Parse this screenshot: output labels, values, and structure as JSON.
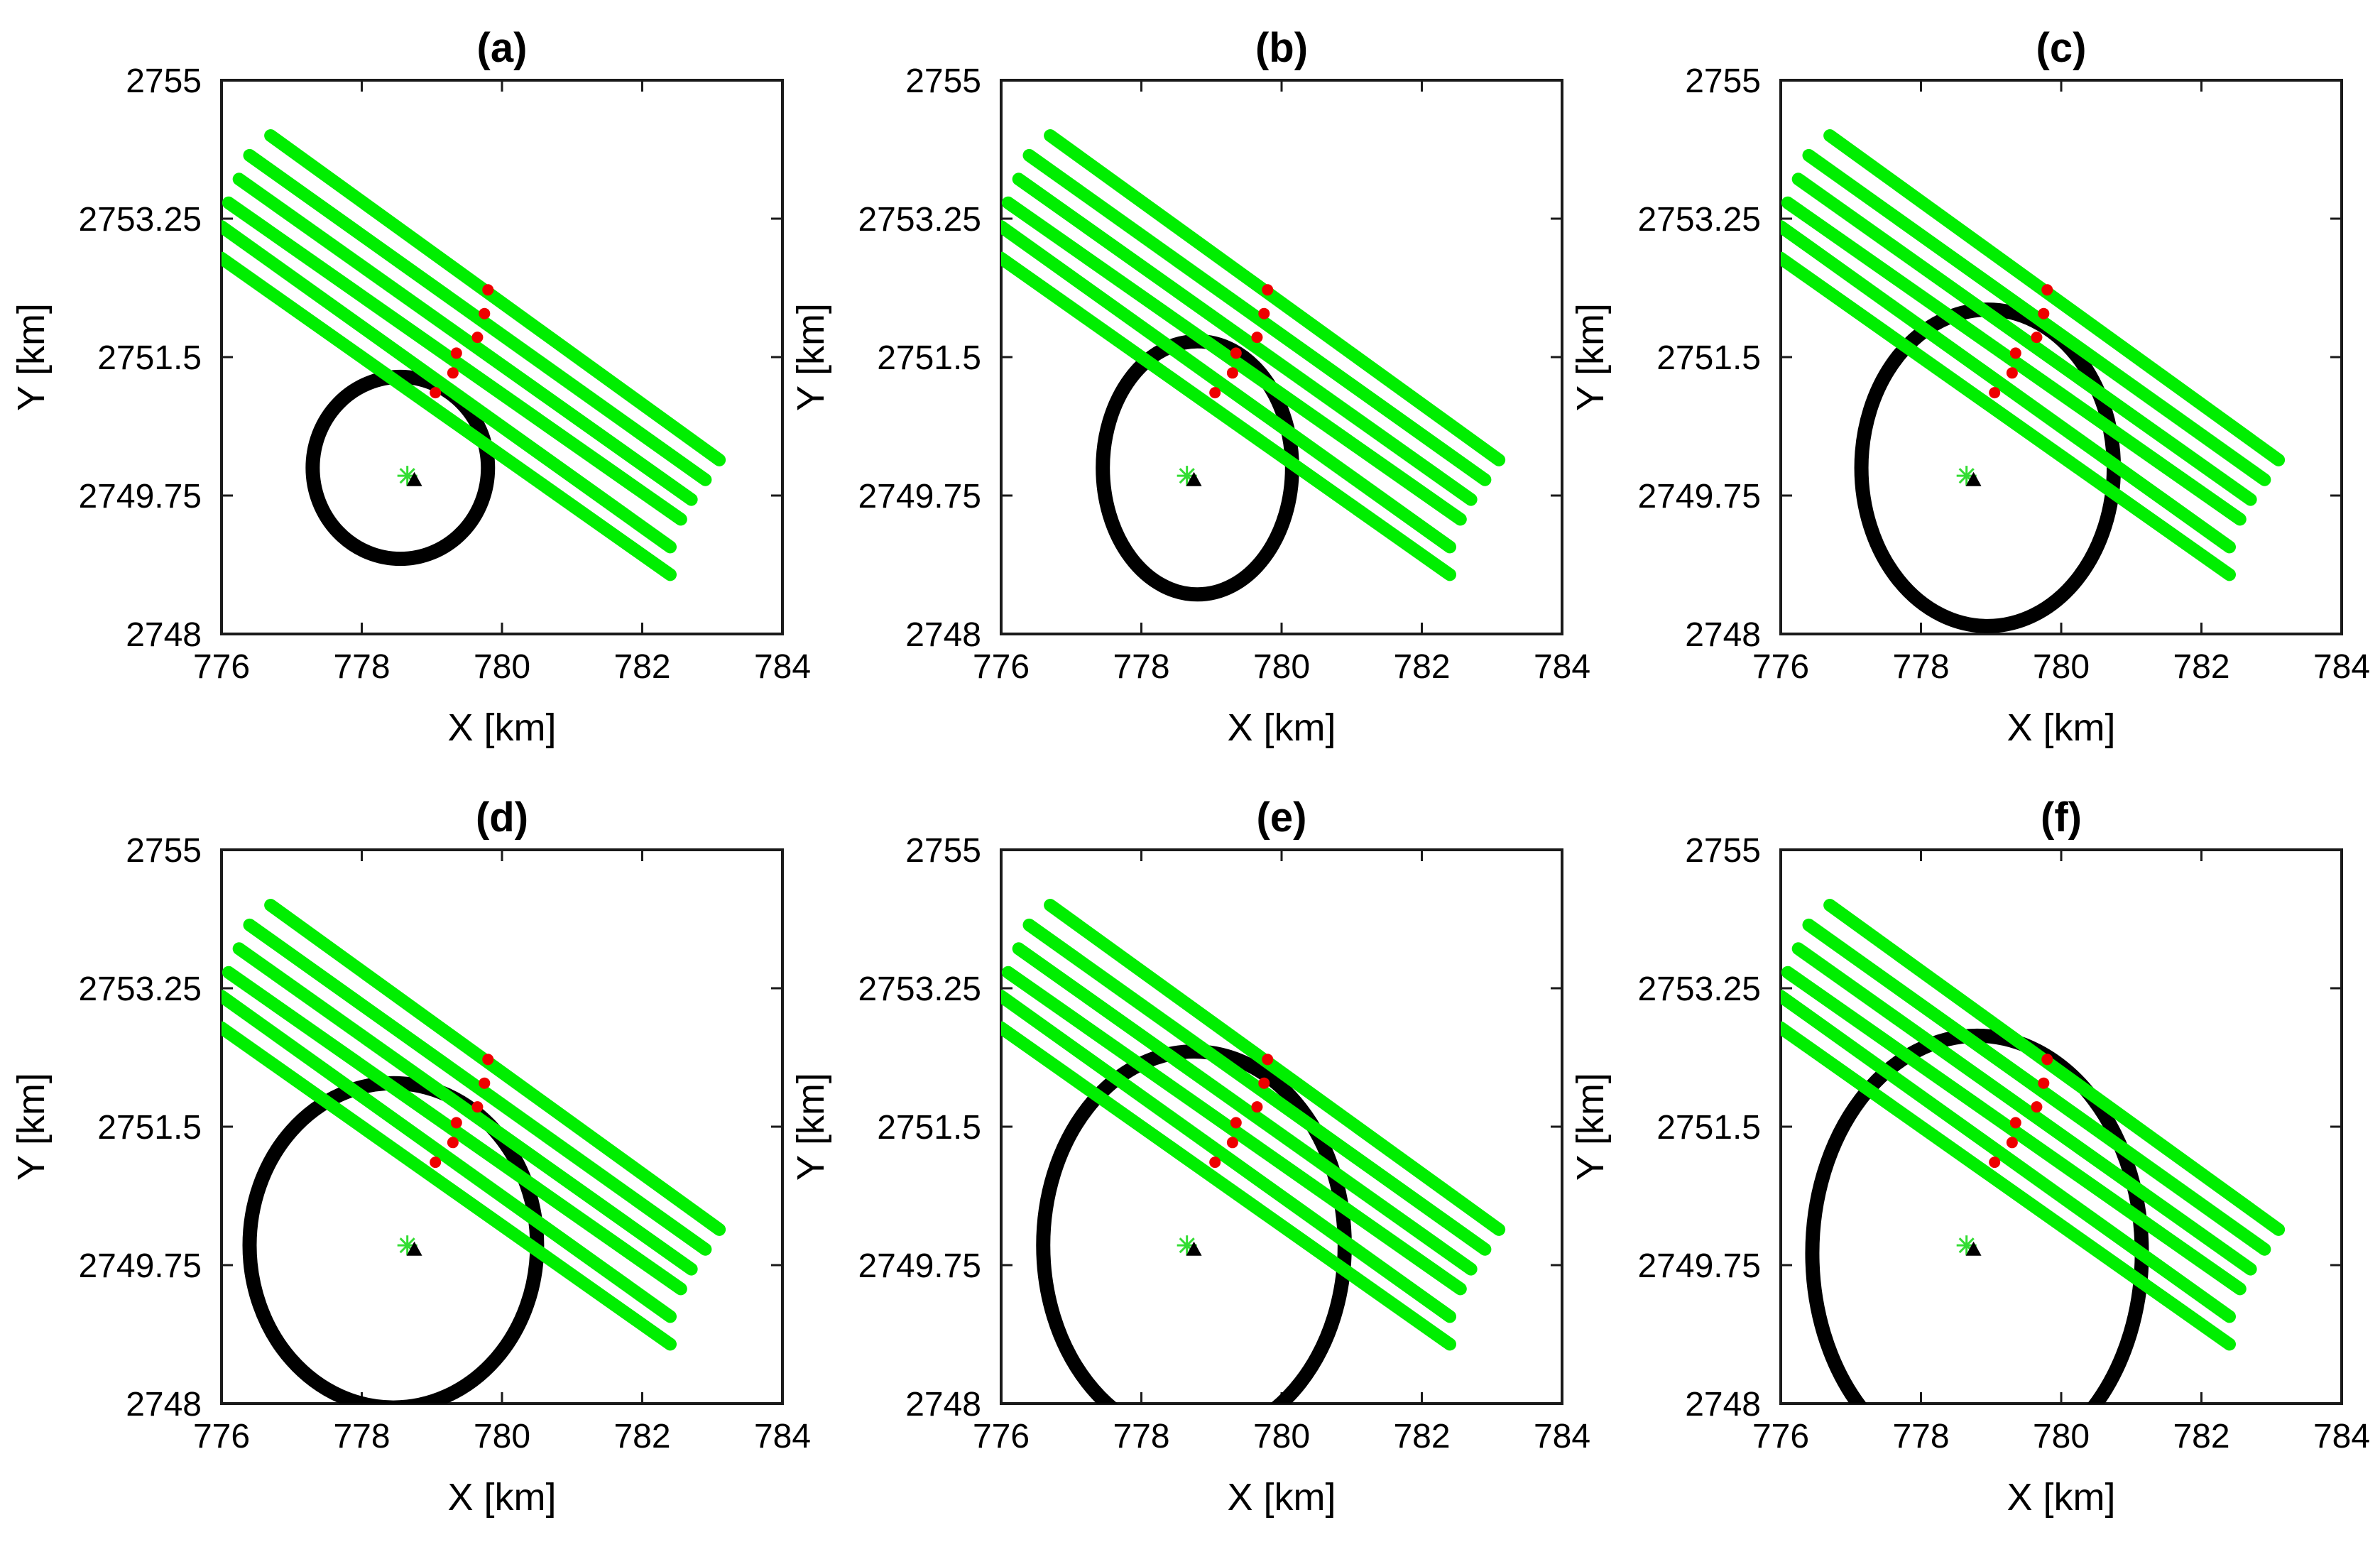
{
  "chart_data": {
    "type": "scatter",
    "layout": "2x3 grid of panels",
    "shared": {
      "xlabel": "X [km]",
      "ylabel": "Y [km]",
      "xlim": [
        776,
        784
      ],
      "ylim": [
        2748,
        2755
      ],
      "xticks": [
        "776",
        "778",
        "780",
        "782",
        "784"
      ],
      "yticks": [
        "2748",
        "2749.75",
        "2751.5",
        "2753.25",
        "2755"
      ],
      "colors": {
        "tracks": "#00ee00",
        "contour": "#000000",
        "detections": "#ee0000",
        "source": "#000000",
        "center": "#33dd33"
      },
      "tracks": [
        {
          "start": [
            776.7,
            2754.3
          ],
          "end": [
            783.1,
            2750.2
          ]
        },
        {
          "start": [
            776.4,
            2754.05
          ],
          "end": [
            782.9,
            2749.95
          ]
        },
        {
          "start": [
            776.25,
            2753.75
          ],
          "end": [
            782.7,
            2749.7
          ]
        },
        {
          "start": [
            776.1,
            2753.45
          ],
          "end": [
            782.55,
            2749.45
          ]
        },
        {
          "start": [
            776.0,
            2753.15
          ],
          "end": [
            782.4,
            2749.1
          ]
        },
        {
          "start": [
            776.0,
            2752.75
          ],
          "end": [
            782.4,
            2748.75
          ]
        }
      ],
      "detections": [
        {
          "x": 779.8,
          "y": 2752.35
        },
        {
          "x": 779.75,
          "y": 2752.05
        },
        {
          "x": 779.65,
          "y": 2751.75
        },
        {
          "x": 779.35,
          "y": 2751.55
        },
        {
          "x": 779.3,
          "y": 2751.3
        },
        {
          "x": 779.05,
          "y": 2751.05
        }
      ],
      "source_location": {
        "x": 778.75,
        "y": 2749.95
      },
      "center_marker": {
        "x": 778.65,
        "y": 2750.0
      }
    },
    "panels": [
      {
        "title": "(a)",
        "contour": {
          "cx": 778.55,
          "cy": 2750.1,
          "rx": 1.25,
          "ry": 1.15
        }
      },
      {
        "title": "(b)",
        "contour": {
          "cx": 778.8,
          "cy": 2750.1,
          "rx": 1.35,
          "ry": 1.6
        }
      },
      {
        "title": "(c)",
        "contour": {
          "cx": 778.95,
          "cy": 2750.1,
          "rx": 1.8,
          "ry": 2.0
        }
      },
      {
        "title": "(d)",
        "contour": {
          "cx": 778.45,
          "cy": 2750.0,
          "rx": 2.05,
          "ry": 2.05
        }
      },
      {
        "title": "(e)",
        "contour": {
          "cx": 778.75,
          "cy": 2750.0,
          "rx": 2.15,
          "ry": 2.45
        }
      },
      {
        "title": "(f)",
        "contour": {
          "cx": 778.8,
          "cy": 2749.9,
          "rx": 2.35,
          "ry": 2.75
        }
      }
    ]
  }
}
